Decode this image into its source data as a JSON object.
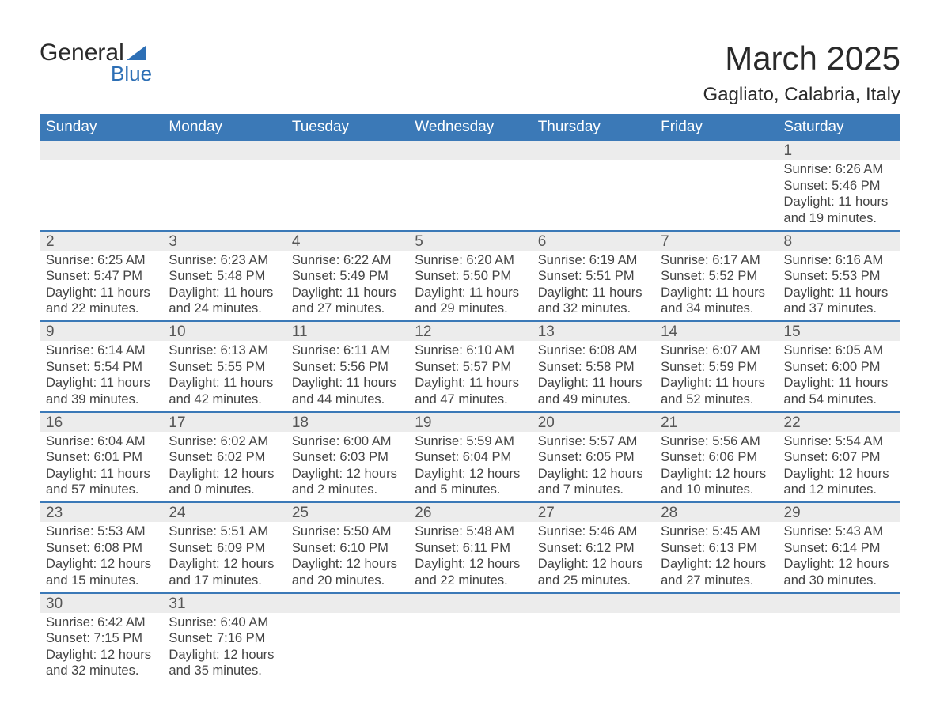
{
  "logo": {
    "text_general": "General",
    "text_blue": "Blue"
  },
  "title": "March 2025",
  "location": "Gagliato, Calabria, Italy",
  "day_names": [
    "Sunday",
    "Monday",
    "Tuesday",
    "Wednesday",
    "Thursday",
    "Friday",
    "Saturday"
  ],
  "colors": {
    "header_bg": "#3b79b7",
    "header_text": "#ffffff",
    "daynum_bg": "#ececec",
    "row_divider": "#3b79b7",
    "text": "#3a3a3a",
    "logo_accent": "#2d6fb5"
  },
  "label_sunrise": "Sunrise:",
  "label_sunset": "Sunset:",
  "label_daylight": "Daylight:",
  "weeks": [
    [
      null,
      null,
      null,
      null,
      null,
      null,
      {
        "day": "1",
        "sunrise": "6:26 AM",
        "sunset": "5:46 PM",
        "daylight_h": "11",
        "daylight_m": "19"
      }
    ],
    [
      {
        "day": "2",
        "sunrise": "6:25 AM",
        "sunset": "5:47 PM",
        "daylight_h": "11",
        "daylight_m": "22"
      },
      {
        "day": "3",
        "sunrise": "6:23 AM",
        "sunset": "5:48 PM",
        "daylight_h": "11",
        "daylight_m": "24"
      },
      {
        "day": "4",
        "sunrise": "6:22 AM",
        "sunset": "5:49 PM",
        "daylight_h": "11",
        "daylight_m": "27"
      },
      {
        "day": "5",
        "sunrise": "6:20 AM",
        "sunset": "5:50 PM",
        "daylight_h": "11",
        "daylight_m": "29"
      },
      {
        "day": "6",
        "sunrise": "6:19 AM",
        "sunset": "5:51 PM",
        "daylight_h": "11",
        "daylight_m": "32"
      },
      {
        "day": "7",
        "sunrise": "6:17 AM",
        "sunset": "5:52 PM",
        "daylight_h": "11",
        "daylight_m": "34"
      },
      {
        "day": "8",
        "sunrise": "6:16 AM",
        "sunset": "5:53 PM",
        "daylight_h": "11",
        "daylight_m": "37"
      }
    ],
    [
      {
        "day": "9",
        "sunrise": "6:14 AM",
        "sunset": "5:54 PM",
        "daylight_h": "11",
        "daylight_m": "39"
      },
      {
        "day": "10",
        "sunrise": "6:13 AM",
        "sunset": "5:55 PM",
        "daylight_h": "11",
        "daylight_m": "42"
      },
      {
        "day": "11",
        "sunrise": "6:11 AM",
        "sunset": "5:56 PM",
        "daylight_h": "11",
        "daylight_m": "44"
      },
      {
        "day": "12",
        "sunrise": "6:10 AM",
        "sunset": "5:57 PM",
        "daylight_h": "11",
        "daylight_m": "47"
      },
      {
        "day": "13",
        "sunrise": "6:08 AM",
        "sunset": "5:58 PM",
        "daylight_h": "11",
        "daylight_m": "49"
      },
      {
        "day": "14",
        "sunrise": "6:07 AM",
        "sunset": "5:59 PM",
        "daylight_h": "11",
        "daylight_m": "52"
      },
      {
        "day": "15",
        "sunrise": "6:05 AM",
        "sunset": "6:00 PM",
        "daylight_h": "11",
        "daylight_m": "54"
      }
    ],
    [
      {
        "day": "16",
        "sunrise": "6:04 AM",
        "sunset": "6:01 PM",
        "daylight_h": "11",
        "daylight_m": "57"
      },
      {
        "day": "17",
        "sunrise": "6:02 AM",
        "sunset": "6:02 PM",
        "daylight_h": "12",
        "daylight_m": "0"
      },
      {
        "day": "18",
        "sunrise": "6:00 AM",
        "sunset": "6:03 PM",
        "daylight_h": "12",
        "daylight_m": "2"
      },
      {
        "day": "19",
        "sunrise": "5:59 AM",
        "sunset": "6:04 PM",
        "daylight_h": "12",
        "daylight_m": "5"
      },
      {
        "day": "20",
        "sunrise": "5:57 AM",
        "sunset": "6:05 PM",
        "daylight_h": "12",
        "daylight_m": "7"
      },
      {
        "day": "21",
        "sunrise": "5:56 AM",
        "sunset": "6:06 PM",
        "daylight_h": "12",
        "daylight_m": "10"
      },
      {
        "day": "22",
        "sunrise": "5:54 AM",
        "sunset": "6:07 PM",
        "daylight_h": "12",
        "daylight_m": "12"
      }
    ],
    [
      {
        "day": "23",
        "sunrise": "5:53 AM",
        "sunset": "6:08 PM",
        "daylight_h": "12",
        "daylight_m": "15"
      },
      {
        "day": "24",
        "sunrise": "5:51 AM",
        "sunset": "6:09 PM",
        "daylight_h": "12",
        "daylight_m": "17"
      },
      {
        "day": "25",
        "sunrise": "5:50 AM",
        "sunset": "6:10 PM",
        "daylight_h": "12",
        "daylight_m": "20"
      },
      {
        "day": "26",
        "sunrise": "5:48 AM",
        "sunset": "6:11 PM",
        "daylight_h": "12",
        "daylight_m": "22"
      },
      {
        "day": "27",
        "sunrise": "5:46 AM",
        "sunset": "6:12 PM",
        "daylight_h": "12",
        "daylight_m": "25"
      },
      {
        "day": "28",
        "sunrise": "5:45 AM",
        "sunset": "6:13 PM",
        "daylight_h": "12",
        "daylight_m": "27"
      },
      {
        "day": "29",
        "sunrise": "5:43 AM",
        "sunset": "6:14 PM",
        "daylight_h": "12",
        "daylight_m": "30"
      }
    ],
    [
      {
        "day": "30",
        "sunrise": "6:42 AM",
        "sunset": "7:15 PM",
        "daylight_h": "12",
        "daylight_m": "32"
      },
      {
        "day": "31",
        "sunrise": "6:40 AM",
        "sunset": "7:16 PM",
        "daylight_h": "12",
        "daylight_m": "35"
      },
      null,
      null,
      null,
      null,
      null
    ]
  ]
}
